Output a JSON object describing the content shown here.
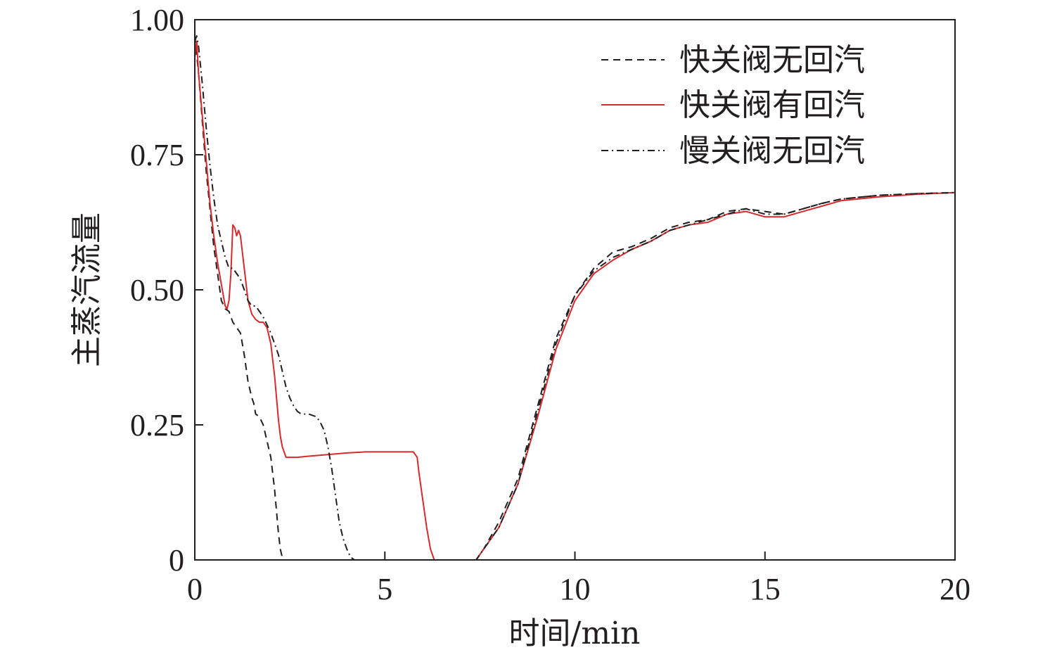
{
  "chart_data": {
    "type": "line",
    "xlabel": "时间/min",
    "ylabel": "主蒸汽流量",
    "xlim": [
      0,
      20
    ],
    "ylim": [
      0,
      1.0
    ],
    "xticks": [
      0,
      5,
      10,
      15,
      20
    ],
    "xtick_labels": [
      "0",
      "5",
      "10",
      "15",
      "20"
    ],
    "yticks": [
      0,
      0.25,
      0.5,
      0.75,
      1.0
    ],
    "ytick_labels": [
      "0",
      "0.25",
      "0.50",
      "0.75",
      "1.00"
    ],
    "grid": false,
    "legend_position": "top-right",
    "series": [
      {
        "name": "快关阀无回汽",
        "color": "#231f20",
        "dash": "dashed",
        "x": [
          0,
          0.1,
          0.3,
          0.5,
          0.7,
          0.8,
          0.9,
          1.0,
          1.1,
          1.2,
          1.3,
          1.4,
          1.5,
          1.55,
          1.6,
          1.7,
          1.8,
          1.9,
          2.0,
          2.1,
          2.15,
          2.2,
          2.25,
          2.3,
          2.35,
          2.5,
          3,
          4,
          5,
          6,
          7,
          7.4,
          7.6,
          8,
          8.5,
          9,
          9.5,
          10,
          10.5,
          11,
          11.5,
          12,
          12.5,
          13,
          13.5,
          14,
          14.5,
          15,
          15.5,
          16,
          16.5,
          17,
          18,
          19,
          20
        ],
        "y": [
          0.97,
          0.9,
          0.72,
          0.58,
          0.48,
          0.465,
          0.46,
          0.44,
          0.43,
          0.42,
          0.38,
          0.33,
          0.3,
          0.29,
          0.27,
          0.265,
          0.25,
          0.22,
          0.19,
          0.13,
          0.09,
          0.05,
          0.02,
          0.005,
          0,
          0,
          0,
          0,
          0,
          0,
          0,
          0,
          0.02,
          0.07,
          0.15,
          0.28,
          0.41,
          0.49,
          0.54,
          0.57,
          0.58,
          0.595,
          0.615,
          0.625,
          0.63,
          0.645,
          0.65,
          0.645,
          0.64,
          0.65,
          0.66,
          0.668,
          0.675,
          0.678,
          0.68
        ]
      },
      {
        "name": "快关阀有回汽",
        "color": "#d72a2d",
        "dash": "solid",
        "x": [
          0,
          0.05,
          0.1,
          0.2,
          0.3,
          0.4,
          0.5,
          0.6,
          0.7,
          0.8,
          0.85,
          0.9,
          0.95,
          1.0,
          1.05,
          1.1,
          1.15,
          1.2,
          1.3,
          1.4,
          1.5,
          1.6,
          1.7,
          1.8,
          1.9,
          2.0,
          2.1,
          2.2,
          2.25,
          2.3,
          2.35,
          2.4,
          2.5,
          2.7,
          3,
          3.5,
          4,
          4.5,
          5,
          5.5,
          5.75,
          5.85,
          5.9,
          6.0,
          6.1,
          6.2,
          6.3,
          6.5,
          7,
          7.4,
          7.6,
          8,
          8.5,
          9,
          9.5,
          10,
          10.5,
          11,
          11.5,
          12,
          12.5,
          13,
          13.5,
          14,
          14.5,
          15,
          15.5,
          16,
          16.5,
          17,
          18,
          19,
          20
        ],
        "y": [
          0.93,
          0.96,
          0.9,
          0.82,
          0.74,
          0.66,
          0.6,
          0.55,
          0.51,
          0.47,
          0.465,
          0.48,
          0.53,
          0.62,
          0.615,
          0.6,
          0.61,
          0.6,
          0.54,
          0.48,
          0.455,
          0.445,
          0.44,
          0.44,
          0.43,
          0.4,
          0.34,
          0.26,
          0.23,
          0.21,
          0.2,
          0.19,
          0.19,
          0.19,
          0.192,
          0.195,
          0.198,
          0.2,
          0.2,
          0.2,
          0.2,
          0.19,
          0.16,
          0.11,
          0.06,
          0.02,
          0,
          0,
          0,
          0,
          0.02,
          0.06,
          0.14,
          0.26,
          0.39,
          0.48,
          0.53,
          0.555,
          0.575,
          0.59,
          0.61,
          0.62,
          0.625,
          0.64,
          0.645,
          0.635,
          0.635,
          0.645,
          0.655,
          0.665,
          0.672,
          0.677,
          0.68
        ]
      },
      {
        "name": "慢关阀无回汽",
        "color": "#231f20",
        "dash": "dashdot",
        "x": [
          0,
          0.05,
          0.1,
          0.2,
          0.3,
          0.4,
          0.5,
          0.6,
          0.7,
          0.8,
          0.9,
          1.0,
          1.1,
          1.2,
          1.3,
          1.4,
          1.5,
          1.6,
          1.7,
          1.8,
          1.9,
          2.0,
          2.1,
          2.2,
          2.3,
          2.4,
          2.5,
          2.6,
          2.7,
          2.8,
          3.0,
          3.2,
          3.3,
          3.4,
          3.5,
          3.6,
          3.7,
          3.8,
          3.9,
          4.0,
          4.1,
          4.2,
          4.5,
          5,
          6,
          7,
          7.4,
          7.6,
          8,
          8.5,
          9,
          9.5,
          10,
          10.5,
          11,
          11.5,
          12,
          12.5,
          13,
          13.5,
          14,
          14.5,
          15,
          15.5,
          16,
          16.5,
          17,
          18,
          19,
          20
        ],
        "y": [
          0.96,
          0.97,
          0.95,
          0.88,
          0.8,
          0.73,
          0.67,
          0.62,
          0.59,
          0.56,
          0.54,
          0.54,
          0.53,
          0.52,
          0.5,
          0.48,
          0.47,
          0.47,
          0.46,
          0.45,
          0.435,
          0.42,
          0.4,
          0.38,
          0.35,
          0.32,
          0.3,
          0.285,
          0.275,
          0.27,
          0.27,
          0.265,
          0.255,
          0.24,
          0.21,
          0.17,
          0.12,
          0.07,
          0.04,
          0.02,
          0.005,
          0,
          0,
          0,
          0,
          0,
          0,
          0.02,
          0.06,
          0.14,
          0.27,
          0.4,
          0.49,
          0.535,
          0.56,
          0.575,
          0.59,
          0.61,
          0.62,
          0.63,
          0.64,
          0.65,
          0.64,
          0.64,
          0.65,
          0.66,
          0.668,
          0.675,
          0.678,
          0.68
        ]
      }
    ]
  }
}
